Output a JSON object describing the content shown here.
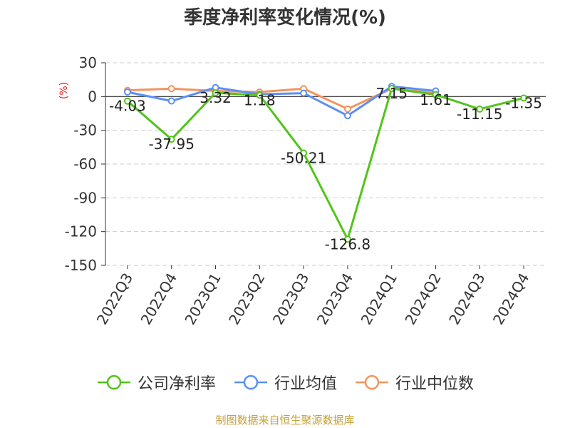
{
  "chart_data": {
    "type": "line",
    "title": "季度净利率变化情况(%)",
    "ylabel": "(%)",
    "categories": [
      "2022Q3",
      "2022Q4",
      "2023Q1",
      "2023Q2",
      "2023Q3",
      "2023Q4",
      "2024Q1",
      "2024Q2",
      "2024Q3",
      "2024Q4"
    ],
    "ylim": [
      -150,
      30
    ],
    "yticks": [
      30,
      0,
      -30,
      -60,
      -90,
      -120,
      -150
    ],
    "grid": true,
    "legend_position": "bottom",
    "series": [
      {
        "name": "公司净利率",
        "color": "#52c41a",
        "values": [
          -4.03,
          -37.95,
          3.32,
          1.18,
          -50.21,
          -126.8,
          7.15,
          1.61,
          -11.15,
          -1.35
        ],
        "labels": [
          "-4.03",
          "-37.95",
          "3.32",
          "1.18",
          "-50.21",
          "-126.8",
          "7.15",
          "1.61",
          "-11.15",
          "-1.35"
        ]
      },
      {
        "name": "行业均值",
        "color": "#5b8ff9",
        "values": [
          4,
          -4,
          8,
          2,
          3,
          -17,
          9,
          5,
          null,
          null
        ]
      },
      {
        "name": "行业中位数",
        "color": "#f4945c",
        "values": [
          5.5,
          7,
          5,
          4,
          7,
          -11,
          7,
          3,
          null,
          null
        ]
      }
    ]
  },
  "source_text": "制图数据来自恒生聚源数据库"
}
